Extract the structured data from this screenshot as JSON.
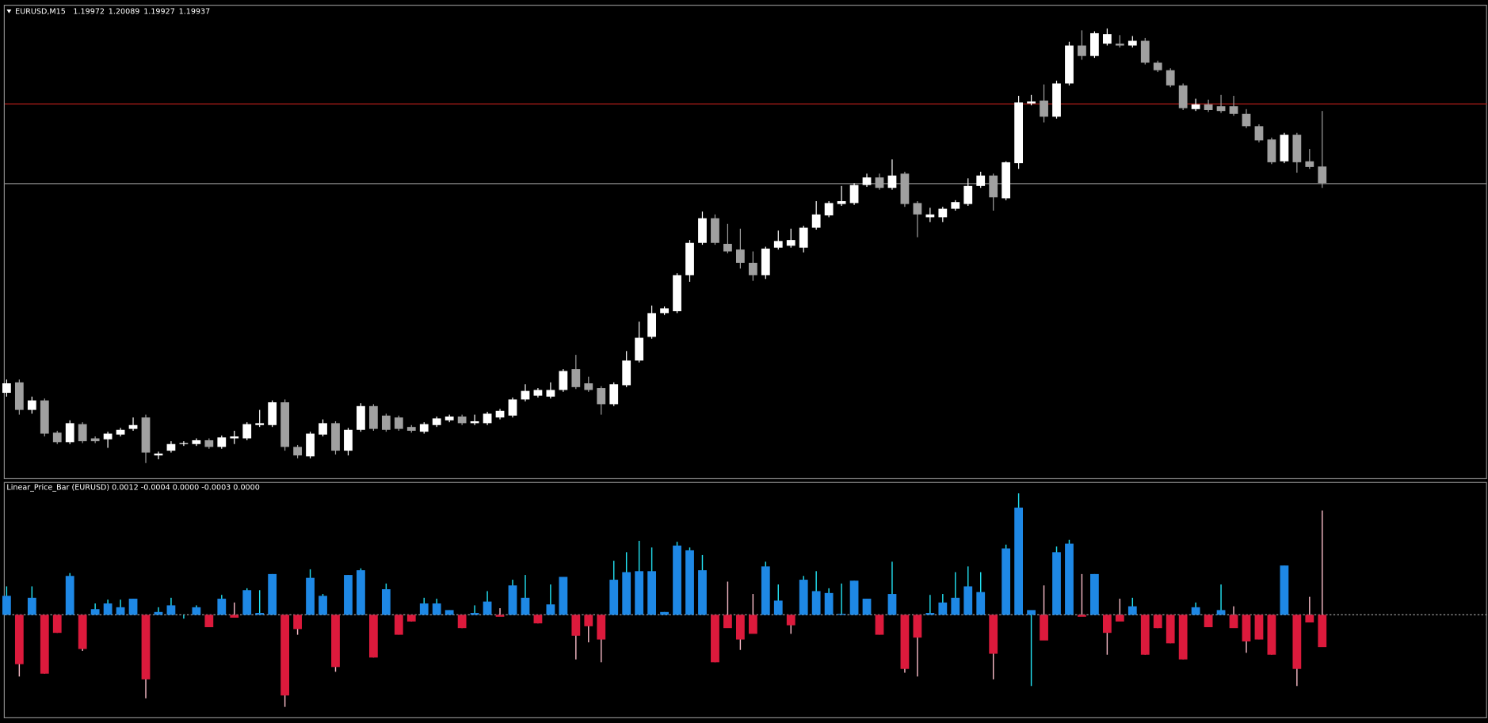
{
  "chart_data": [
    {
      "type": "candlestick",
      "title": "EURUSD,M15",
      "ylim": [
        1.19313,
        1.20309
      ],
      "up_color": "#ffffff",
      "down_color": "#a0a0a0",
      "levels": [
        {
          "value": 1.20105,
          "color": "#c0201a"
        },
        {
          "value": 1.19937,
          "color": "#8a8a8a"
        }
      ],
      "open": [
        1.19495,
        1.19517,
        1.19459,
        1.19479,
        1.19411,
        1.19391,
        1.19429,
        1.19399,
        1.19397,
        1.19407,
        1.19419,
        1.19443,
        1.19363,
        1.19373,
        1.19387,
        1.19387,
        1.19395,
        1.19381,
        1.19399,
        1.19399,
        1.19427,
        1.19427,
        1.19475,
        1.19381,
        1.19361,
        1.19407,
        1.19431,
        1.19373,
        1.19417,
        1.19467,
        1.19447,
        1.19443,
        1.19423,
        1.19413,
        1.19427,
        1.19437,
        1.19445,
        1.19431,
        1.19431,
        1.19443,
        1.19447,
        1.19481,
        1.19489,
        1.19487,
        1.19501,
        1.19545,
        1.19515,
        1.19505,
        1.19471,
        1.19511,
        1.19563,
        1.19613,
        1.19663,
        1.19667,
        1.19743,
        1.19811,
        1.19863,
        1.19809,
        1.19797,
        1.19769,
        1.19743,
        1.19801,
        1.19805,
        1.19801,
        1.19843,
        1.19869,
        1.19893,
        1.19895,
        1.19933,
        1.19949,
        1.19927,
        1.19957,
        1.19895,
        1.19865,
        1.19865,
        1.19883,
        1.19893,
        1.19931,
        1.19953,
        1.19905,
        1.19979,
        1.20105,
        1.20111,
        1.20077,
        1.20147,
        1.20227,
        1.20205,
        1.20231,
        1.20231,
        1.20227,
        1.20237,
        1.20191,
        1.20175,
        1.20143,
        1.20093,
        1.20103,
        1.20099,
        1.20099,
        1.20083,
        1.20057,
        1.20029,
        1.19983,
        1.20039,
        1.19983,
        1.19972
      ],
      "high": [
        1.19523,
        1.19523,
        1.19487,
        1.19483,
        1.19415,
        1.19437,
        1.19433,
        1.19403,
        1.19413,
        1.19421,
        1.19443,
        1.19449,
        1.19371,
        1.19393,
        1.19393,
        1.19399,
        1.19399,
        1.19405,
        1.19415,
        1.19433,
        1.19459,
        1.19479,
        1.19481,
        1.19385,
        1.19413,
        1.19439,
        1.19435,
        1.19421,
        1.19473,
        1.19471,
        1.19451,
        1.19447,
        1.19427,
        1.19433,
        1.19445,
        1.19449,
        1.19449,
        1.19449,
        1.19455,
        1.19461,
        1.19485,
        1.19513,
        1.19505,
        1.19517,
        1.19545,
        1.19575,
        1.19529,
        1.19509,
        1.19517,
        1.19583,
        1.19645,
        1.19679,
        1.19677,
        1.19747,
        1.19817,
        1.19877,
        1.19871,
        1.19851,
        1.19841,
        1.19793,
        1.19803,
        1.19837,
        1.19841,
        1.19847,
        1.19899,
        1.19899,
        1.19931,
        1.19937,
        1.19957,
        1.19957,
        1.19987,
        1.19961,
        1.19899,
        1.19885,
        1.19887,
        1.19901,
        1.19947,
        1.19961,
        1.19957,
        1.19983,
        1.20121,
        1.20123,
        1.20145,
        1.20153,
        1.20235,
        1.20259,
        1.20257,
        1.20263,
        1.20249,
        1.20247,
        1.20243,
        1.20195,
        1.20179,
        1.20147,
        1.20115,
        1.20113,
        1.20123,
        1.20121,
        1.20093,
        1.20061,
        1.20033,
        1.20043,
        1.20043,
        1.20009,
        1.20089
      ],
      "low": [
        1.19487,
        1.19449,
        1.19451,
        1.19403,
        1.19387,
        1.19387,
        1.19389,
        1.19389,
        1.19379,
        1.19403,
        1.19415,
        1.19347,
        1.19355,
        1.19369,
        1.19383,
        1.19383,
        1.19377,
        1.19377,
        1.19387,
        1.19395,
        1.19423,
        1.19423,
        1.19373,
        1.19357,
        1.19357,
        1.19403,
        1.19365,
        1.19363,
        1.19413,
        1.19415,
        1.19413,
        1.19415,
        1.19411,
        1.19409,
        1.19423,
        1.19433,
        1.19427,
        1.19427,
        1.19427,
        1.19439,
        1.19443,
        1.19477,
        1.19485,
        1.19483,
        1.19497,
        1.19503,
        1.19497,
        1.19449,
        1.19467,
        1.19507,
        1.19559,
        1.19609,
        1.19659,
        1.19663,
        1.19729,
        1.19807,
        1.19807,
        1.19789,
        1.19757,
        1.19731,
        1.19735,
        1.19797,
        1.19801,
        1.19791,
        1.19839,
        1.19865,
        1.19889,
        1.19891,
        1.19929,
        1.19923,
        1.19923,
        1.19887,
        1.19823,
        1.19855,
        1.19855,
        1.19879,
        1.19889,
        1.19927,
        1.19879,
        1.19901,
        1.19967,
        1.20101,
        1.20065,
        1.20073,
        1.20143,
        1.20197,
        1.20201,
        1.20227,
        1.20223,
        1.20223,
        1.20187,
        1.20171,
        1.20139,
        1.20091,
        1.20089,
        1.20087,
        1.20085,
        1.20079,
        1.20053,
        1.20023,
        1.19977,
        1.19979,
        1.19959,
        1.19967,
        1.19927
      ],
      "close": [
        1.19515,
        1.19459,
        1.19479,
        1.19409,
        1.19391,
        1.19431,
        1.19393,
        1.19393,
        1.19409,
        1.19417,
        1.19427,
        1.19369,
        1.19367,
        1.19387,
        1.19389,
        1.19395,
        1.19381,
        1.19401,
        1.19403,
        1.19429,
        1.19431,
        1.19475,
        1.19381,
        1.19363,
        1.19409,
        1.19431,
        1.19373,
        1.19417,
        1.19467,
        1.19419,
        1.19417,
        1.19419,
        1.19415,
        1.19429,
        1.19441,
        1.19445,
        1.19431,
        1.19435,
        1.19451,
        1.19457,
        1.19481,
        1.19499,
        1.19501,
        1.19501,
        1.19541,
        1.19507,
        1.19501,
        1.19471,
        1.19513,
        1.19563,
        1.19611,
        1.19663,
        1.19673,
        1.19743,
        1.19811,
        1.19863,
        1.19811,
        1.19793,
        1.19769,
        1.19743,
        1.19799,
        1.19815,
        1.19817,
        1.19843,
        1.19871,
        1.19895,
        1.19899,
        1.19933,
        1.19949,
        1.19927,
        1.19953,
        1.19893,
        1.19871,
        1.19871,
        1.19883,
        1.19897,
        1.19931,
        1.19953,
        1.19907,
        1.19981,
        1.20107,
        1.20109,
        1.20077,
        1.20147,
        1.20227,
        1.20205,
        1.20253,
        1.20251,
        1.20227,
        1.20237,
        1.20191,
        1.20175,
        1.20143,
        1.20095,
        1.20103,
        1.20091,
        1.20089,
        1.20083,
        1.20057,
        1.20027,
        1.19981,
        1.20039,
        1.19981,
        1.19971,
        1.19937
      ]
    },
    {
      "type": "bar",
      "title": "Linear_Price_Bar (EURUSD) 0.0012 -0.0004 0.0000 -0.0003 0.0000",
      "ylim": [
        -0.00109,
        0.0014
      ],
      "up_color": "#1e88e5",
      "down_color": "#dc1a3c",
      "up_wick_color": "#22e0f0",
      "down_wick_color": "#f4b8c4",
      "body": [
        0.0002,
        -0.00052,
        0.00018,
        -0.00062,
        -0.00019,
        0.00041,
        -0.00036,
        6e-05,
        0.00012,
        8e-05,
        0.00017,
        -0.00068,
        3e-05,
        0.0001,
        0,
        8e-05,
        -0.00013,
        0.00017,
        -3e-05,
        0.00026,
        2e-05,
        0.00043,
        -0.00085,
        -0.00015,
        0.00039,
        0.0002,
        -0.00055,
        0.00042,
        0.00047,
        -0.00045,
        0.00027,
        -0.00021,
        -7e-05,
        0.00012,
        0.00012,
        5e-05,
        -0.00014,
        2e-05,
        0.00014,
        -2e-05,
        0.00031,
        0.00018,
        -9e-05,
        0.00011,
        0.0004,
        -0.00022,
        -0.00012,
        -0.00026,
        0.00037,
        0.00045,
        0.00046,
        0.00046,
        3e-05,
        0.00073,
        0.00068,
        0.00047,
        -0.0005,
        -0.00014,
        -0.00026,
        -0.0002,
        0.00051,
        0.00015,
        -0.00011,
        0.00037,
        0.00025,
        0.00023,
        1e-05,
        0.00036,
        0.00017,
        -0.00021,
        0.00022,
        -0.00057,
        -0.00024,
        2e-05,
        0.00013,
        0.00018,
        0.0003,
        0.00024,
        -0.00041,
        0.0007,
        0.00113,
        5e-05,
        -0.00027,
        0.00066,
        0.00075,
        -2e-05,
        0.00043,
        -0.00019,
        -7e-05,
        9e-05,
        -0.00042,
        -0.00014,
        -0.0003,
        -0.00047,
        8e-05,
        -0.00013,
        5e-05,
        -0.00014,
        -0.00028,
        -0.00026,
        -0.00042,
        0.00052,
        -0.00057,
        -8e-05,
        -0.00034
      ],
      "wick": [
        0.0003,
        -0.00065,
        0.0003,
        -0.00062,
        -0.00019,
        0.00044,
        -0.00038,
        0.00012,
        0.00016,
        0.00016,
        0.00017,
        -0.00088,
        8e-05,
        0.00018,
        -4e-05,
        0.0001,
        -0.00013,
        0.00021,
        0.00013,
        0.00028,
        0.00026,
        0.00043,
        -0.00097,
        -0.00021,
        0.00048,
        0.00022,
        -0.0006,
        0.00042,
        0.00049,
        -0.00045,
        0.00033,
        -0.00021,
        -7e-05,
        0.00018,
        0.00017,
        5e-05,
        -0.00014,
        0.0001,
        0.00025,
        7e-05,
        0.00037,
        0.00042,
        -9e-05,
        0.00032,
        0.0004,
        -0.00047,
        -0.00029,
        -0.0005,
        0.00057,
        0.00066,
        0.00078,
        0.00071,
        3e-05,
        0.00077,
        0.00071,
        0.00063,
        -0.0005,
        0.00035,
        -0.00037,
        0.00022,
        0.00056,
        0.00032,
        -0.0002,
        0.00041,
        0.00046,
        0.00028,
        0.00033,
        0.00036,
        0.00017,
        -0.00021,
        0.00056,
        -0.00061,
        -0.00065,
        0.00021,
        0.00022,
        0.00045,
        0.00051,
        0.00045,
        -0.00068,
        0.00074,
        0.00128,
        -0.00075,
        0.00031,
        0.00072,
        0.00079,
        0.00043,
        0.00043,
        -0.00042,
        0.00017,
        0.00018,
        -0.00042,
        -0.00014,
        -0.0003,
        -0.00047,
        0.00013,
        -0.00013,
        0.00032,
        9e-05,
        -0.0004,
        -0.00026,
        -0.00042,
        0.00052,
        -0.00075,
        0.00019,
        0.0011
      ]
    }
  ]
}
